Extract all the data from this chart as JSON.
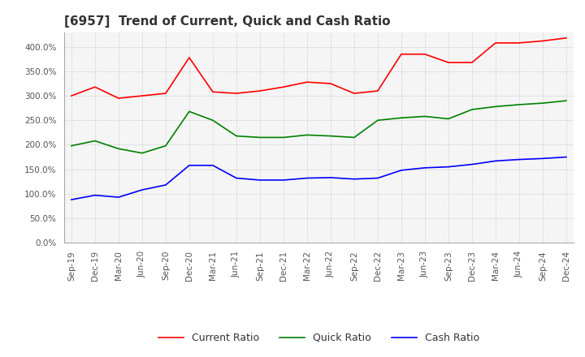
{
  "title": "[6957]  Trend of Current, Quick and Cash Ratio",
  "x_labels": [
    "Sep-19",
    "Dec-19",
    "Mar-20",
    "Jun-20",
    "Sep-20",
    "Dec-20",
    "Mar-21",
    "Jun-21",
    "Sep-21",
    "Dec-21",
    "Mar-22",
    "Jun-22",
    "Sep-22",
    "Dec-22",
    "Mar-23",
    "Jun-23",
    "Sep-23",
    "Dec-23",
    "Mar-24",
    "Jun-24",
    "Sep-24",
    "Dec-24"
  ],
  "current_ratio": [
    300,
    318,
    295,
    300,
    305,
    378,
    308,
    305,
    310,
    318,
    328,
    325,
    305,
    310,
    385,
    385,
    368,
    368,
    408,
    408,
    412,
    418
  ],
  "quick_ratio": [
    198,
    208,
    192,
    183,
    198,
    268,
    250,
    218,
    215,
    215,
    220,
    218,
    215,
    250,
    255,
    258,
    253,
    272,
    278,
    282,
    285,
    290
  ],
  "cash_ratio": [
    88,
    97,
    93,
    108,
    118,
    158,
    158,
    132,
    128,
    128,
    132,
    133,
    130,
    132,
    148,
    153,
    155,
    160,
    167,
    170,
    172,
    175
  ],
  "current_color": "#ff0000",
  "quick_color": "#008000",
  "cash_color": "#0000ff",
  "ylim": [
    0,
    430
  ],
  "yticks": [
    0,
    50,
    100,
    150,
    200,
    250,
    300,
    350,
    400
  ],
  "bg_color": "#ffffff",
  "grid_color": "#bbbbbb",
  "title_fontsize": 11,
  "tick_fontsize": 7.5,
  "legend_fontsize": 9
}
